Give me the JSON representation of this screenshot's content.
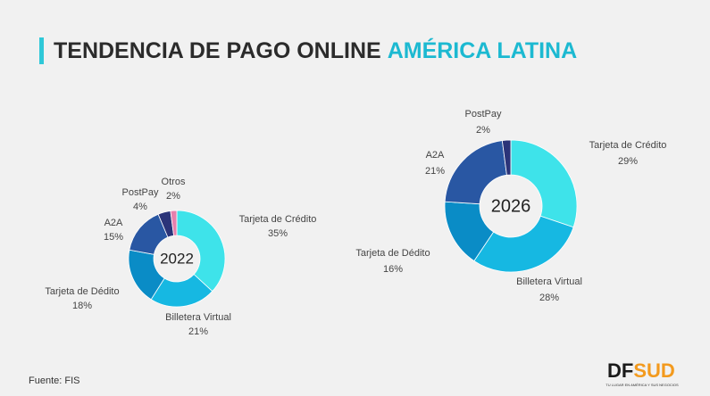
{
  "header": {
    "title": "TENDENCIA DE PAGO ONLINE",
    "title_highlight": "AMÉRICA LATINA"
  },
  "source": "Fuente: FIS",
  "logo": {
    "left": "DF",
    "right": "SUD",
    "tagline": "TU LUGAR EN AMÉRICA Y SUS NEGOCIOS"
  },
  "chart_data": [
    {
      "type": "donut",
      "center_label": "2022",
      "categories": [
        "Tarjeta de Crédito",
        "Billetera Virtual",
        "Tarjeta de Dédito",
        "A2A",
        "PostPay",
        "Otros"
      ],
      "values": [
        35,
        21,
        18,
        15,
        4,
        2
      ],
      "value_labels": [
        "35%",
        "21%",
        "18%",
        "15%",
        "4%",
        "2%"
      ],
      "colors": [
        "#3ee3ea",
        "#16b8e2",
        "#0a8cc6",
        "#2957a3",
        "#2b3479",
        "#e680ad"
      ]
    },
    {
      "type": "donut",
      "center_label": "2026",
      "categories": [
        "Tarjeta de Crédito",
        "Billetera Virtual",
        "Tarjeta de Dédito",
        "A2A",
        "PostPay"
      ],
      "values": [
        29,
        28,
        16,
        21,
        2
      ],
      "value_labels": [
        "29%",
        "28%",
        "16%",
        "21%",
        "2%"
      ],
      "colors": [
        "#3ee3ea",
        "#16b8e2",
        "#0a8cc6",
        "#2957a3",
        "#2b3479"
      ]
    }
  ]
}
